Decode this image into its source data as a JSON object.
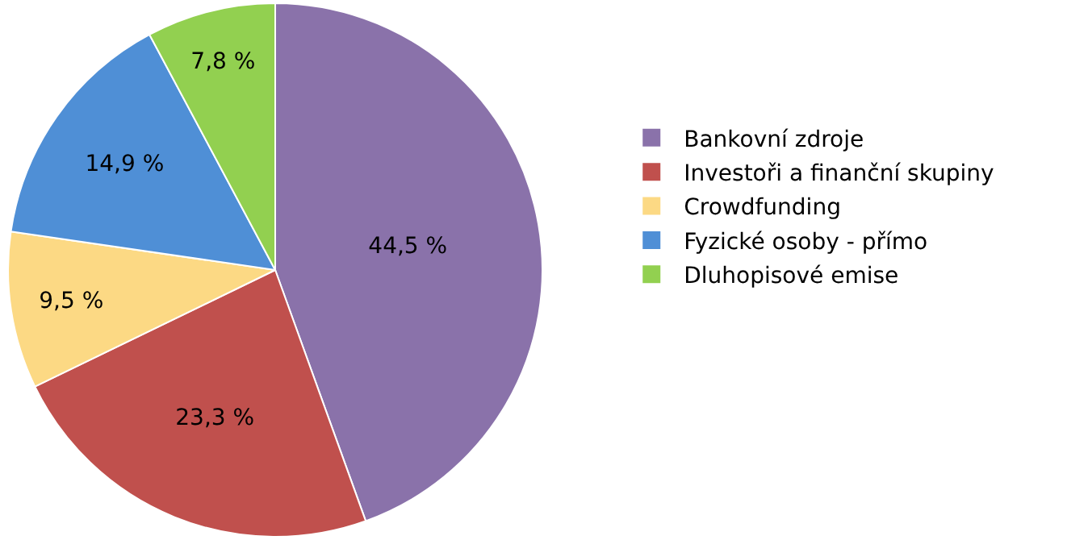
{
  "chart_data": {
    "type": "pie",
    "categories": [
      "Bankovní zdroje",
      "Investoři a finanční skupiny",
      "Crowdfunding",
      "Fyzické osoby - přímo",
      "Dluhopisové emise"
    ],
    "values": [
      44.5,
      23.3,
      9.5,
      14.9,
      7.8
    ],
    "colors": [
      "#8a72aa",
      "#c0504d",
      "#fcd984",
      "#4f8fd6",
      "#92d050"
    ],
    "value_labels": [
      "44,5 %",
      "23,3 %",
      "9,5 %",
      "14,9 %",
      "7,8 %"
    ],
    "legend": "right"
  }
}
